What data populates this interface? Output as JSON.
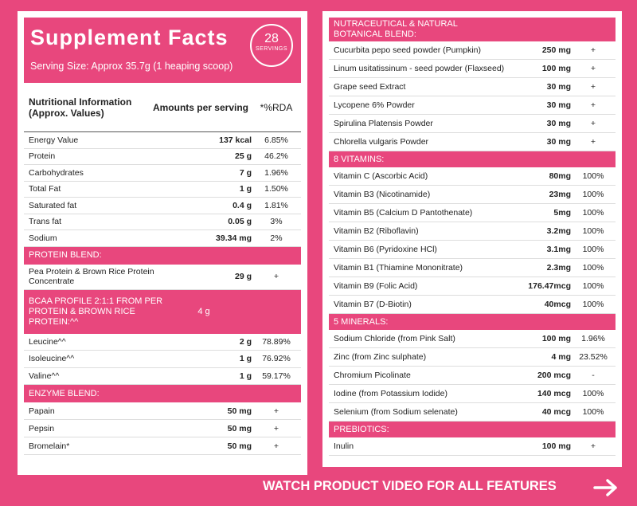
{
  "left": {
    "title": "Supplement Facts",
    "serving": "Serving Size: Approx 35.7g (1 heaping scoop)",
    "badge": {
      "count": "28",
      "label": "SERVINGS"
    },
    "columns": [
      "Nutritional Information (Approx. Values)",
      "Amounts per serving",
      "*%RDA"
    ],
    "sections": [
      {
        "rows": [
          [
            "Energy Value",
            "137 kcal",
            "6.85%"
          ],
          [
            "Protein",
            "25 g",
            "46.2%"
          ],
          [
            "Carbohydrates",
            "7 g",
            "1.96%"
          ],
          [
            "Total Fat",
            "1 g",
            "1.50%"
          ],
          [
            "Saturated fat",
            "0.4 g",
            "1.81%"
          ],
          [
            "Trans fat",
            "0.05 g",
            "3%"
          ],
          [
            "Sodium",
            "39.34 mg",
            "2%"
          ]
        ]
      },
      {
        "heading": "PROTEIN BLEND:",
        "rows": [
          [
            "Pea Protein & Brown Rice Protein Concentrate",
            "29 g",
            "+"
          ]
        ]
      },
      {
        "heading": "BCAA PROFILE 2:1:1 FROM PER PROTEIN & BROWN RICE PROTEIN:^^",
        "heading_amount": "4 g",
        "rows": [
          [
            "Leucine^^",
            "2 g",
            "78.89%"
          ],
          [
            "Isoleucine^^",
            "1 g",
            "76.92%"
          ],
          [
            "Valine^^",
            "1 g",
            "59.17%"
          ]
        ]
      },
      {
        "heading": "ENZYME BLEND:",
        "rows": [
          [
            "Papain",
            "50 mg",
            "+"
          ],
          [
            "Pepsin",
            "50 mg",
            "+"
          ],
          [
            "Bromelain*",
            "50 mg",
            "+"
          ]
        ]
      }
    ]
  },
  "right": {
    "sections": [
      {
        "heading": "NUTRACEUTICAL & NATURAL BOTANICAL BLEND:",
        "rows": [
          [
            "Cucurbita pepo seed powder (Pumpkin)",
            "250 mg",
            "+"
          ],
          [
            "Linum usitatissinum - seed powder (Flaxseed)",
            "100 mg",
            "+"
          ],
          [
            "Grape seed Extract",
            "30 mg",
            "+"
          ],
          [
            "Lycopene 6% Powder",
            "30 mg",
            "+"
          ],
          [
            "Spirulina Platensis Powder",
            "30 mg",
            "+"
          ],
          [
            "Chlorella vulgaris Powder",
            "30 mg",
            "+"
          ]
        ]
      },
      {
        "heading": "8 VITAMINS:",
        "rows": [
          [
            "Vitamin C (Ascorbic Acid)",
            "80mg",
            "100%"
          ],
          [
            "Vitamin B3 (Nicotinamide)",
            "23mg",
            "100%"
          ],
          [
            "Vitamin B5 (Calcium D Pantothenate)",
            "5mg",
            "100%"
          ],
          [
            "Vitamin B2 (Riboflavin)",
            "3.2mg",
            "100%"
          ],
          [
            "Vitamin B6 (Pyridoxine HCl)",
            "3.1mg",
            "100%"
          ],
          [
            "Vitamin B1 (Thiamine Mononitrate)",
            "2.3mg",
            "100%"
          ],
          [
            "Vitamin B9 (Folic Acid)",
            "176.47mcg",
            "100%"
          ],
          [
            "Vitamin B7 (D-Biotin)",
            "40mcg",
            "100%"
          ]
        ]
      },
      {
        "heading": "5 MINERALS:",
        "rows": [
          [
            "Sodium Chloride (from Pink Salt)",
            "100 mg",
            "1.96%"
          ],
          [
            "Zinc (from Zinc sulphate)",
            "4 mg",
            "23.52%"
          ],
          [
            "Chromium Picolinate",
            "200 mcg",
            "-"
          ],
          [
            "Iodine (from Potassium Iodide)",
            "140 mcg",
            "100%"
          ],
          [
            "Selenium (from Sodium selenate)",
            "40 mcg",
            "100%"
          ]
        ]
      },
      {
        "heading": "PREBIOTICS:",
        "rows": [
          [
            "Inulin",
            "100 mg",
            "+"
          ]
        ]
      }
    ]
  },
  "footer": {
    "text": "WATCH PRODUCT VIDEO FOR ALL FEATURES"
  }
}
